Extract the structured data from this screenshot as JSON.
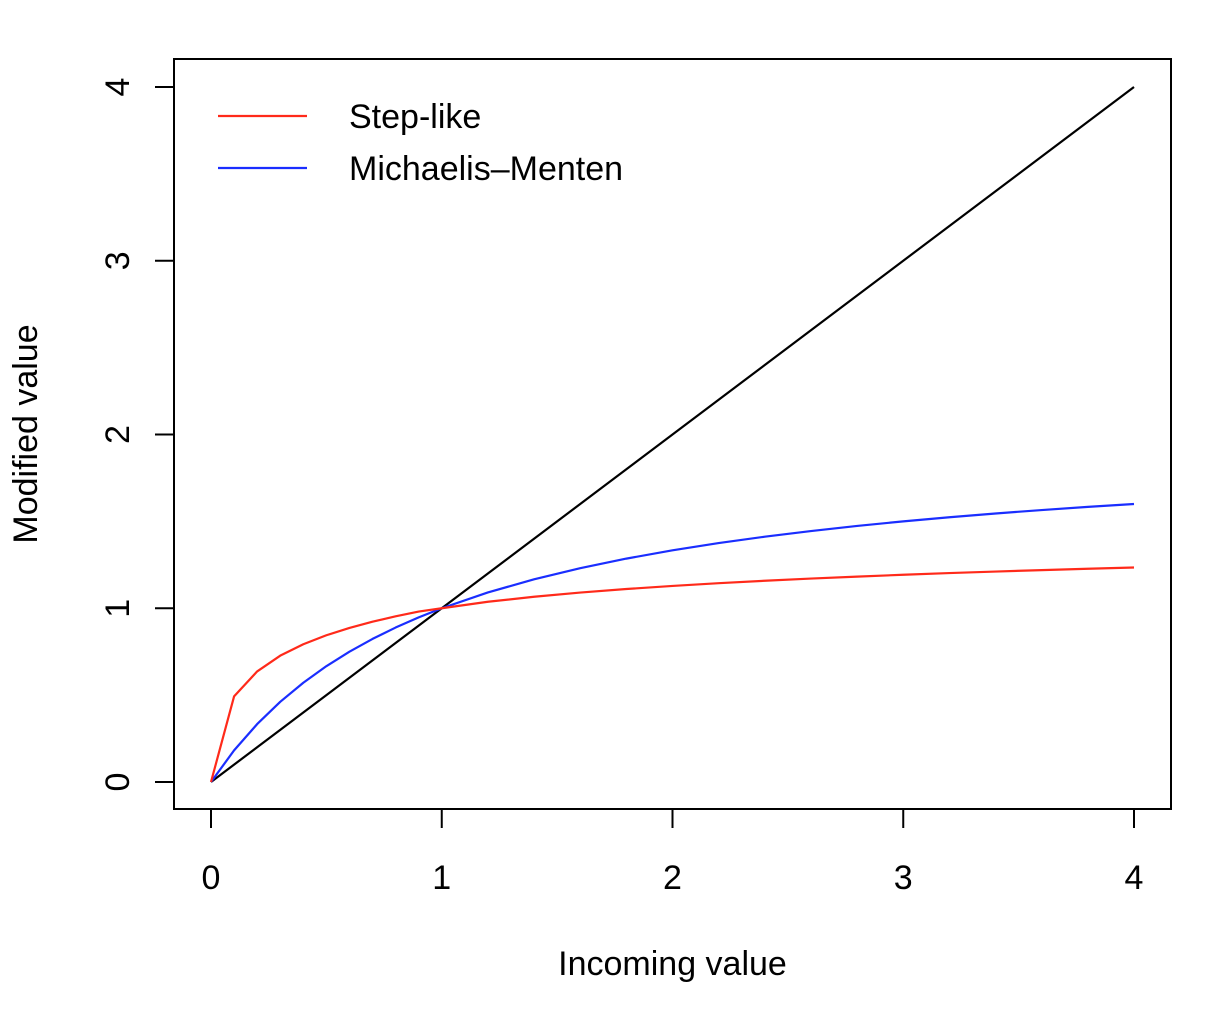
{
  "chart_data": {
    "type": "line",
    "title": "",
    "xlabel": "Incoming value",
    "ylabel": "Modified value",
    "xlim": [
      0,
      4
    ],
    "ylim": [
      0,
      4
    ],
    "xticks": [
      "0",
      "1",
      "2",
      "3",
      "4"
    ],
    "yticks": [
      "0",
      "1",
      "2",
      "3",
      "4"
    ],
    "grid": false,
    "legend_position": "top-left",
    "x": [
      0,
      0.1,
      0.2,
      0.3,
      0.4,
      0.5,
      0.6,
      0.7,
      0.8,
      0.9,
      1.0,
      1.2,
      1.4,
      1.6,
      1.8,
      2.0,
      2.2,
      2.4,
      2.6,
      2.8,
      3.0,
      3.2,
      3.4,
      3.6,
      3.8,
      4.0
    ],
    "series": [
      {
        "name": "Step-like",
        "color": "#ff2a1a",
        "values": [
          0,
          0.4925,
          0.6365,
          0.7271,
          0.7929,
          0.8446,
          0.8869,
          0.9228,
          0.9536,
          0.9809,
          1.0,
          1.0373,
          1.0662,
          1.0902,
          1.1107,
          1.1285,
          1.1442,
          1.1582,
          1.1708,
          1.1822,
          1.1927,
          1.2024,
          1.2113,
          1.2196,
          1.2273,
          1.2345
        ]
      },
      {
        "name": "Michaelis–Menten",
        "color": "#1a2eff",
        "values": [
          0,
          0.1818,
          0.3333,
          0.4615,
          0.5714,
          0.6667,
          0.75,
          0.8235,
          0.8889,
          0.9474,
          1.0,
          1.0909,
          1.1667,
          1.2308,
          1.2857,
          1.3333,
          1.375,
          1.4118,
          1.4444,
          1.4737,
          1.5,
          1.5238,
          1.5455,
          1.5652,
          1.5833,
          1.6
        ]
      },
      {
        "color": "#000000",
        "values": [
          0,
          0.1,
          0.2,
          0.3,
          0.4,
          0.5,
          0.6,
          0.7,
          0.8,
          0.9,
          1.0,
          1.2,
          1.4,
          1.6,
          1.8,
          2.0,
          2.2,
          2.4,
          2.6,
          2.8,
          3.0,
          3.2,
          3.4,
          3.6,
          3.8,
          4.0
        ]
      }
    ]
  }
}
